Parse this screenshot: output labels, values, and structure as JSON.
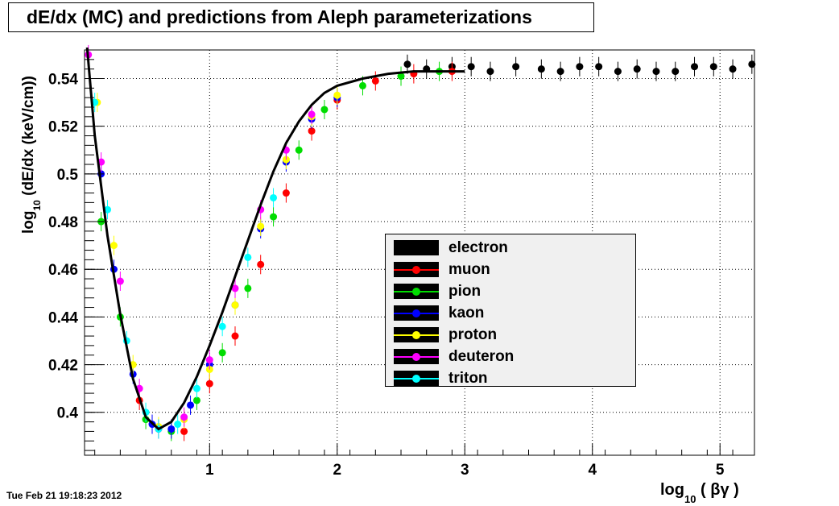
{
  "window": {
    "timestamp": "Tue Feb 21 19:18:23 2012"
  },
  "chart_data": {
    "type": "scatter",
    "title": "dE/dx (MC) and predictions from Aleph parameterizations",
    "xlabel": "log10 ( βγ )",
    "xlabel_main": "log",
    "xlabel_sub": "10",
    "xlabel_arg": " ( βγ  )",
    "ylabel_main": "log",
    "ylabel_sub": "10",
    "ylabel_rest": " (dE/dx (keV/cm))",
    "xlim": [
      0.02,
      5.27
    ],
    "ylim": [
      0.382,
      0.552
    ],
    "x_ticks": [
      1,
      2,
      3,
      4,
      5
    ],
    "y_ticks": [
      0.4,
      0.42,
      0.44,
      0.46,
      0.48,
      0.5,
      0.52,
      0.54
    ],
    "x_tick_labels": [
      "1",
      "2",
      "3",
      "4",
      "5"
    ],
    "y_tick_labels": [
      "0.4",
      "0.42",
      "0.44",
      "0.46",
      "0.48",
      "0.5",
      "0.52",
      "0.54"
    ],
    "grid": true,
    "legend_position": "center-right",
    "series": [
      {
        "name": "electron",
        "color": "#000000",
        "x": [
          2.55,
          2.7,
          2.9,
          3.05,
          3.2,
          3.4,
          3.6,
          3.75,
          3.9,
          4.05,
          4.2,
          4.35,
          4.5,
          4.65,
          4.8,
          4.95,
          5.1,
          5.25
        ],
        "y": [
          0.546,
          0.544,
          0.545,
          0.545,
          0.543,
          0.545,
          0.544,
          0.543,
          0.545,
          0.545,
          0.543,
          0.544,
          0.543,
          0.543,
          0.545,
          0.545,
          0.544,
          0.546
        ]
      },
      {
        "name": "muon",
        "color": "#ff0000",
        "x": [
          0.45,
          0.6,
          0.8,
          1.0,
          1.2,
          1.4,
          1.6,
          1.8,
          2.0,
          2.3,
          2.6,
          2.9
        ],
        "y": [
          0.405,
          0.393,
          0.392,
          0.412,
          0.432,
          0.462,
          0.492,
          0.518,
          0.531,
          0.539,
          0.542,
          0.543
        ]
      },
      {
        "name": "pion",
        "color": "#00dd00",
        "x": [
          0.15,
          0.3,
          0.5,
          0.7,
          0.9,
          1.1,
          1.3,
          1.5,
          1.7,
          1.9,
          2.2,
          2.5,
          2.8
        ],
        "y": [
          0.48,
          0.44,
          0.397,
          0.392,
          0.405,
          0.425,
          0.452,
          0.482,
          0.51,
          0.527,
          0.537,
          0.541,
          0.543
        ]
      },
      {
        "name": "kaon",
        "color": "#0000ff",
        "x": [
          0.15,
          0.25,
          0.4,
          0.55,
          0.7,
          0.85,
          1.0,
          1.2,
          1.4,
          1.6,
          1.8,
          2.0
        ],
        "y": [
          0.5,
          0.46,
          0.416,
          0.395,
          0.393,
          0.403,
          0.42,
          0.445,
          0.477,
          0.505,
          0.523,
          0.532
        ]
      },
      {
        "name": "proton",
        "color": "#ffff00",
        "x": [
          0.12,
          0.25,
          0.4,
          0.6,
          0.8,
          1.0,
          1.2,
          1.4,
          1.6,
          1.8,
          2.0
        ],
        "y": [
          0.53,
          0.47,
          0.42,
          0.394,
          0.397,
          0.418,
          0.445,
          0.478,
          0.506,
          0.524,
          0.533
        ]
      },
      {
        "name": "deuteron",
        "color": "#ff00ff",
        "x": [
          0.05,
          0.15,
          0.3,
          0.45,
          0.6,
          0.8,
          1.0,
          1.2,
          1.4,
          1.6,
          1.8
        ],
        "y": [
          0.55,
          0.505,
          0.455,
          0.41,
          0.393,
          0.398,
          0.422,
          0.452,
          0.485,
          0.51,
          0.525
        ]
      },
      {
        "name": "triton",
        "color": "#00ffff",
        "x": [
          0.1,
          0.2,
          0.35,
          0.5,
          0.6,
          0.75,
          0.9,
          1.1,
          1.3,
          1.5
        ],
        "y": [
          0.53,
          0.485,
          0.43,
          0.4,
          0.393,
          0.395,
          0.41,
          0.436,
          0.465,
          0.49
        ]
      }
    ],
    "curve": {
      "name": "Aleph parameterization",
      "color": "#000000",
      "x": [
        0.04,
        0.1,
        0.2,
        0.3,
        0.4,
        0.5,
        0.6,
        0.7,
        0.8,
        0.9,
        1.0,
        1.1,
        1.2,
        1.3,
        1.4,
        1.5,
        1.6,
        1.7,
        1.8,
        1.9,
        2.0,
        2.2,
        2.4,
        2.6,
        2.8,
        3.0
      ],
      "y": [
        0.553,
        0.516,
        0.474,
        0.441,
        0.414,
        0.398,
        0.393,
        0.396,
        0.404,
        0.415,
        0.428,
        0.442,
        0.457,
        0.472,
        0.487,
        0.501,
        0.513,
        0.522,
        0.529,
        0.534,
        0.537,
        0.54,
        0.542,
        0.543,
        0.543,
        0.543
      ]
    }
  }
}
